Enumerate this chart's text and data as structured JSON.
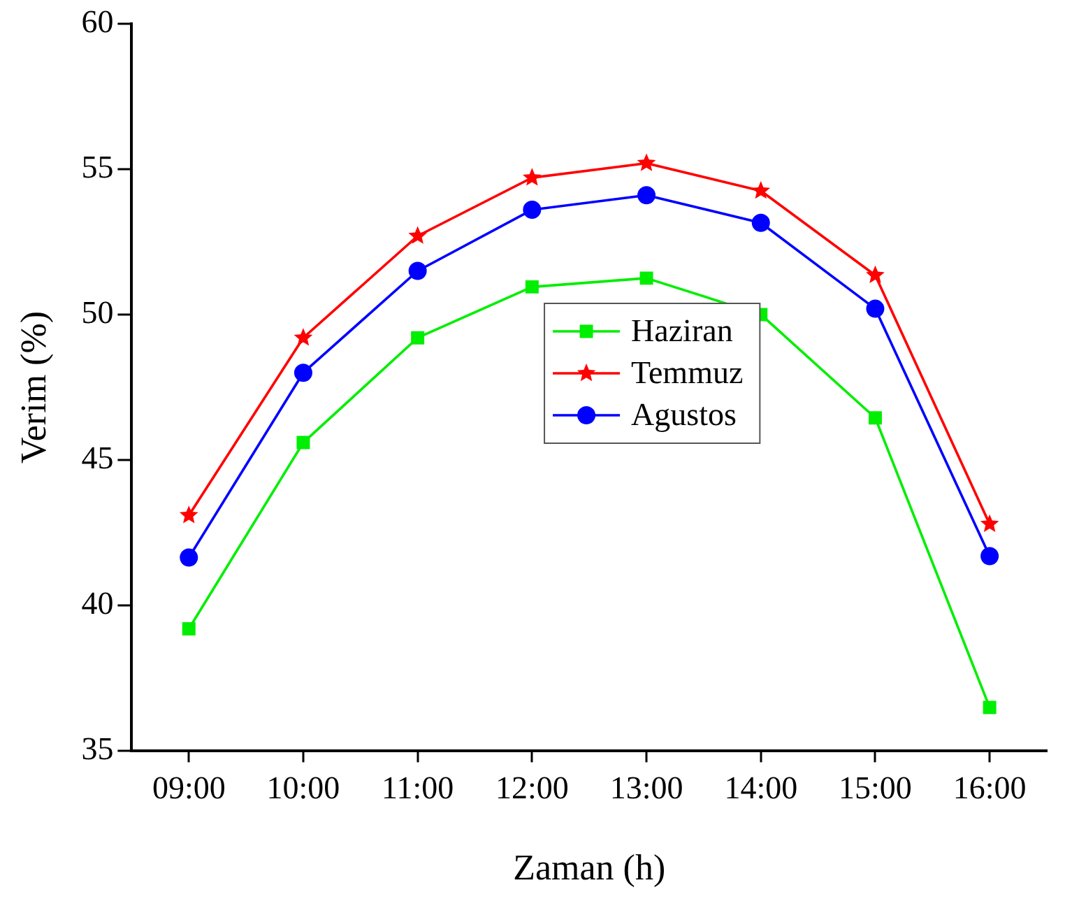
{
  "chart_data": {
    "type": "line",
    "xlabel": "Zaman (h)",
    "ylabel": "Verim (%)",
    "categories": [
      "09:00",
      "10:00",
      "11:00",
      "12:00",
      "13:00",
      "14:00",
      "15:00",
      "16:00"
    ],
    "series": [
      {
        "name": "Haziran",
        "color": "#00ee00",
        "marker": "square",
        "values": [
          39.2,
          45.6,
          49.2,
          50.95,
          51.25,
          50.0,
          46.45,
          36.5
        ]
      },
      {
        "name": "Temmuz",
        "color": "#ff0000",
        "marker": "star",
        "values": [
          43.1,
          49.2,
          52.7,
          54.7,
          55.2,
          54.25,
          51.35,
          42.8
        ]
      },
      {
        "name": "Agustos",
        "color": "#0000ff",
        "marker": "circle",
        "values": [
          41.65,
          48.0,
          51.5,
          53.6,
          54.1,
          53.15,
          50.2,
          41.7
        ]
      }
    ],
    "ylim": [
      35,
      60
    ],
    "yticks": [
      35,
      40,
      45,
      50,
      55,
      60
    ],
    "grid": false,
    "legend": "center",
    "line_style": "solid"
  }
}
